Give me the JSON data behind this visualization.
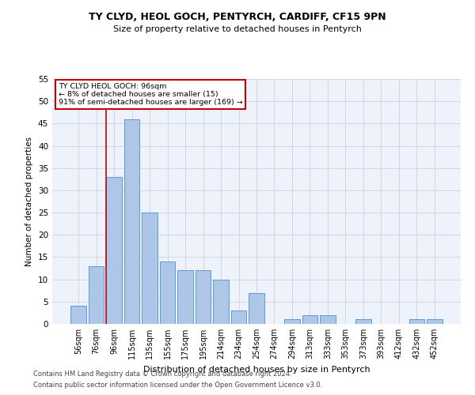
{
  "title1": "TY CLYD, HEOL GOCH, PENTYRCH, CARDIFF, CF15 9PN",
  "title2": "Size of property relative to detached houses in Pentyrch",
  "xlabel": "Distribution of detached houses by size in Pentyrch",
  "ylabel": "Number of detached properties",
  "bins": [
    "56sqm",
    "76sqm",
    "96sqm",
    "115sqm",
    "135sqm",
    "155sqm",
    "175sqm",
    "195sqm",
    "214sqm",
    "234sqm",
    "254sqm",
    "274sqm",
    "294sqm",
    "313sqm",
    "333sqm",
    "353sqm",
    "373sqm",
    "393sqm",
    "412sqm",
    "432sqm",
    "452sqm"
  ],
  "values": [
    4,
    13,
    33,
    46,
    25,
    14,
    12,
    12,
    10,
    3,
    7,
    0,
    1,
    2,
    2,
    0,
    1,
    0,
    0,
    1,
    1
  ],
  "bar_color": "#aec6e8",
  "bar_edge_color": "#5b9bd5",
  "marker_bin_index": 2,
  "annotation_line1": "TY CLYD HEOL GOCH: 96sqm",
  "annotation_line2": "← 8% of detached houses are smaller (15)",
  "annotation_line3": "91% of semi-detached houses are larger (169) →",
  "annotation_box_color": "#ffffff",
  "annotation_box_edge": "#cc0000",
  "vline_color": "#cc0000",
  "grid_color": "#d0d8e8",
  "ylim": [
    0,
    55
  ],
  "yticks": [
    0,
    5,
    10,
    15,
    20,
    25,
    30,
    35,
    40,
    45,
    50,
    55
  ],
  "footer1": "Contains HM Land Registry data © Crown copyright and database right 2024.",
  "footer2": "Contains public sector information licensed under the Open Government Licence v3.0.",
  "bg_color": "#edf2fb"
}
